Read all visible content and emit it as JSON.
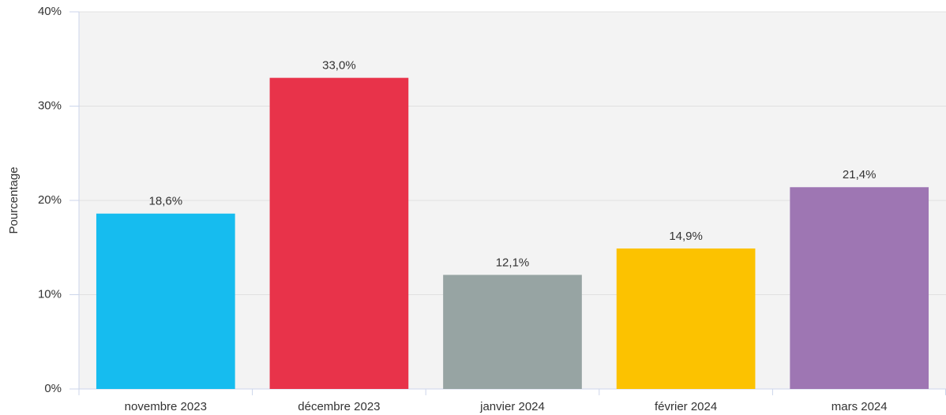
{
  "chart_data": {
    "type": "bar",
    "y_label": "Pourcentage",
    "categories": [
      "novembre 2023",
      "décembre 2023",
      "janvier 2024",
      "février 2024",
      "mars 2024"
    ],
    "values": [
      18.6,
      33.0,
      12.1,
      14.9,
      21.4
    ],
    "value_labels": [
      "18,6%",
      "33,0%",
      "12,1%",
      "14,9%",
      "21,4%"
    ],
    "colors": [
      "#16bcef",
      "#e8334a",
      "#97a4a3",
      "#fcc200",
      "#9e76b3"
    ],
    "ylim": [
      0,
      40
    ],
    "yticks": [
      {
        "value": 0,
        "label": "0%"
      },
      {
        "value": 10,
        "label": "10%"
      },
      {
        "value": 20,
        "label": "20%"
      },
      {
        "value": 30,
        "label": "30%"
      },
      {
        "value": 40,
        "label": "40%"
      }
    ],
    "grid": true
  }
}
